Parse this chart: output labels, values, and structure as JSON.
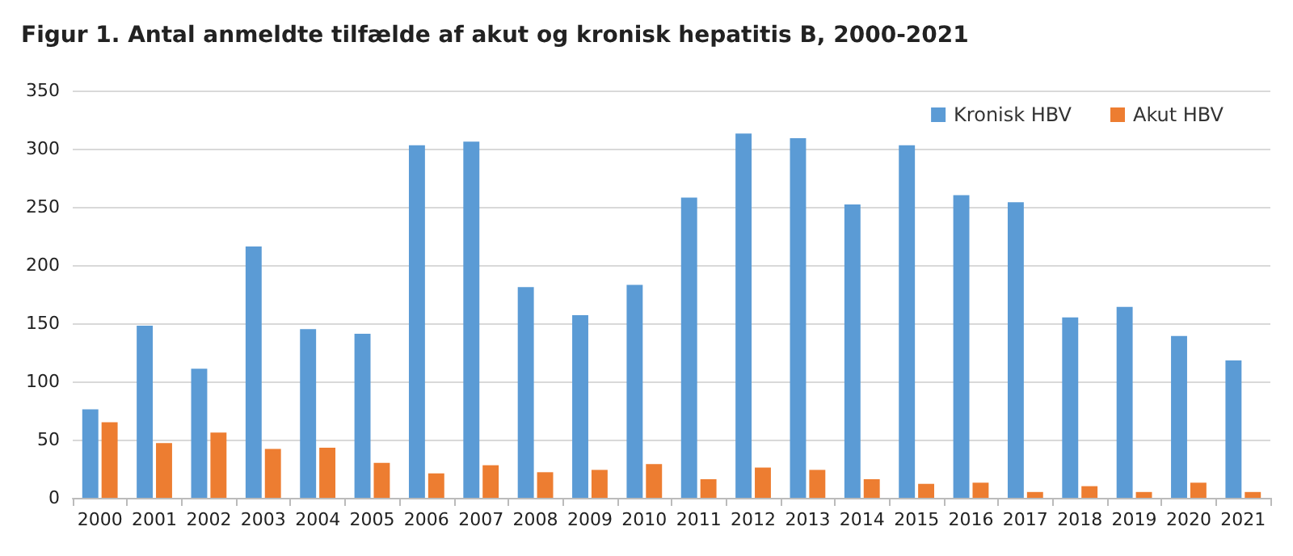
{
  "chart_data": {
    "type": "bar",
    "title": "Figur 1. Antal anmeldte tilfælde af akut og kronisk hepatitis B, 2000-2021",
    "categories": [
      "2000",
      "2001",
      "2002",
      "2003",
      "2004",
      "2005",
      "2006",
      "2007",
      "2008",
      "2009",
      "2010",
      "2011",
      "2012",
      "2013",
      "2014",
      "2015",
      "2016",
      "2017",
      "2018",
      "2019",
      "2020",
      "2021"
    ],
    "series": [
      {
        "name": "Kronisk HBV",
        "color": "#5b9bd5",
        "values": [
          76,
          148,
          111,
          216,
          145,
          141,
          303,
          306,
          181,
          157,
          183,
          258,
          313,
          309,
          252,
          303,
          260,
          254,
          155,
          164,
          139,
          118
        ]
      },
      {
        "name": "Akut HBV",
        "color": "#ed7d31",
        "values": [
          65,
          47,
          56,
          42,
          43,
          30,
          21,
          28,
          22,
          24,
          29,
          16,
          26,
          24,
          16,
          12,
          13,
          5,
          10,
          5,
          13,
          5
        ]
      }
    ],
    "ylim": [
      0,
      350
    ],
    "yticks": [
      0,
      50,
      100,
      150,
      200,
      250,
      300,
      350
    ],
    "grid": "y",
    "legend": "top right"
  }
}
